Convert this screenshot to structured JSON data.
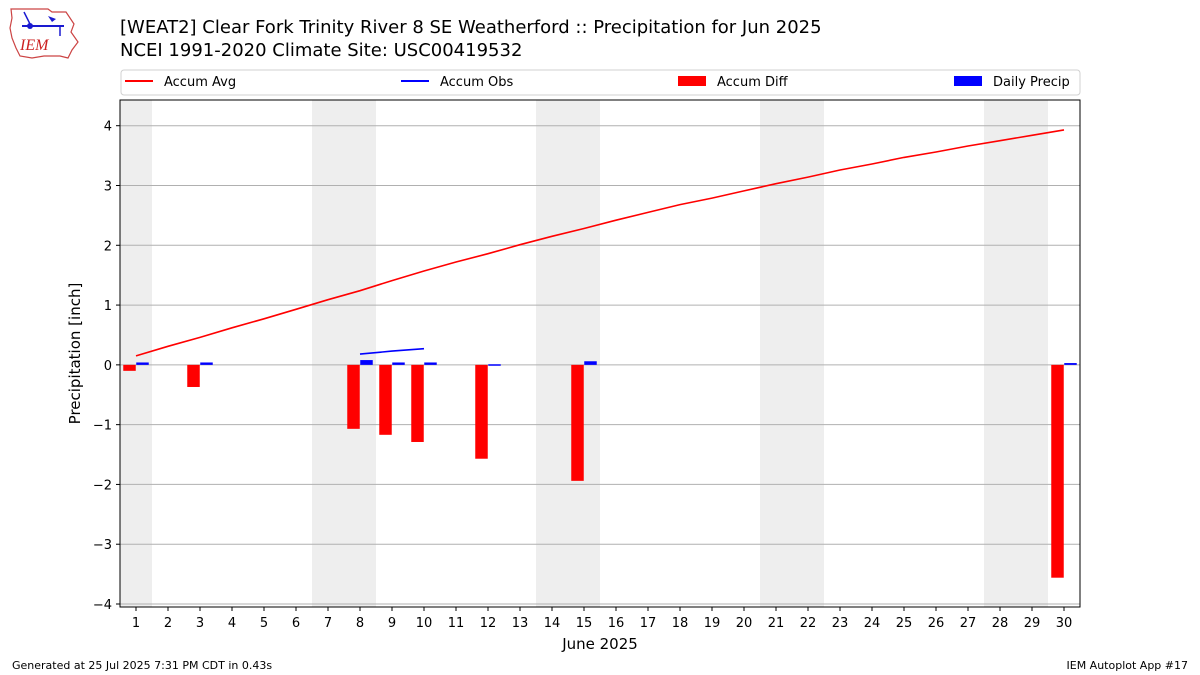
{
  "title": "[WEAT2] Clear Fork Trinity River 8 SE Weatherford :: Precipitation for Jun 2025",
  "subtitle": "NCEI 1991-2020 Climate Site: USC00419532",
  "logo_text": "IEM",
  "footer_left": "Generated at 25 Jul 2025 7:31 PM CDT in 0.43s",
  "footer_right": "IEM Autoplot App #17",
  "colors": {
    "accum_avg": "#ff0000",
    "accum_obs": "#0000ff",
    "accum_diff": "#ff0000",
    "daily_precip": "#0000ff",
    "weekend_shade": "#eeeeee",
    "grid": "#b0b0b0"
  },
  "chart_data": {
    "type": "bar",
    "xlabel": "June 2025",
    "ylabel": "Precipitation [inch]",
    "ylim": [
      -4.05,
      4.43
    ],
    "yticks": [
      -4,
      -3,
      -2,
      -1,
      0,
      1,
      2,
      3,
      4
    ],
    "ytick_labels": [
      "−4",
      "−3",
      "−2",
      "−1",
      "0",
      "1",
      "2",
      "3",
      "4"
    ],
    "grid": "horizontal",
    "legend_position": "top",
    "weekend_days": [
      1,
      7,
      8,
      14,
      15,
      21,
      22,
      28,
      29
    ],
    "days": [
      1,
      2,
      3,
      4,
      5,
      6,
      7,
      8,
      9,
      10,
      11,
      12,
      13,
      14,
      15,
      16,
      17,
      18,
      19,
      20,
      21,
      22,
      23,
      24,
      25,
      26,
      27,
      28,
      29,
      30
    ],
    "series": [
      {
        "name": "Accum Avg",
        "kind": "line",
        "values": [
          0.15,
          0.31,
          0.46,
          0.62,
          0.77,
          0.93,
          1.09,
          1.24,
          1.41,
          1.57,
          1.72,
          1.86,
          2.01,
          2.15,
          2.28,
          2.42,
          2.55,
          2.68,
          2.79,
          2.91,
          3.03,
          3.14,
          3.26,
          3.36,
          3.47,
          3.56,
          3.66,
          3.75,
          3.84,
          3.93
        ]
      },
      {
        "name": "Accum Obs",
        "kind": "line",
        "values": [
          null,
          null,
          null,
          null,
          null,
          null,
          null,
          0.18,
          0.23,
          0.27,
          null,
          null,
          null,
          null,
          null,
          null,
          null,
          null,
          null,
          null,
          null,
          null,
          null,
          null,
          null,
          null,
          null,
          null,
          null,
          null
        ]
      },
      {
        "name": "Accum Diff",
        "kind": "bar",
        "values": [
          -0.1,
          null,
          -0.37,
          null,
          null,
          null,
          null,
          -1.07,
          -1.17,
          -1.29,
          null,
          -1.57,
          null,
          null,
          -1.94,
          null,
          null,
          null,
          null,
          null,
          null,
          null,
          null,
          null,
          null,
          null,
          null,
          null,
          null,
          -3.56
        ]
      },
      {
        "name": "Daily Precip",
        "kind": "bar",
        "values": [
          0.04,
          null,
          0.04,
          null,
          null,
          null,
          null,
          0.08,
          0.04,
          0.04,
          null,
          0.01,
          null,
          null,
          0.06,
          null,
          null,
          null,
          null,
          null,
          null,
          null,
          null,
          null,
          null,
          null,
          null,
          null,
          null,
          0.03
        ]
      }
    ]
  }
}
